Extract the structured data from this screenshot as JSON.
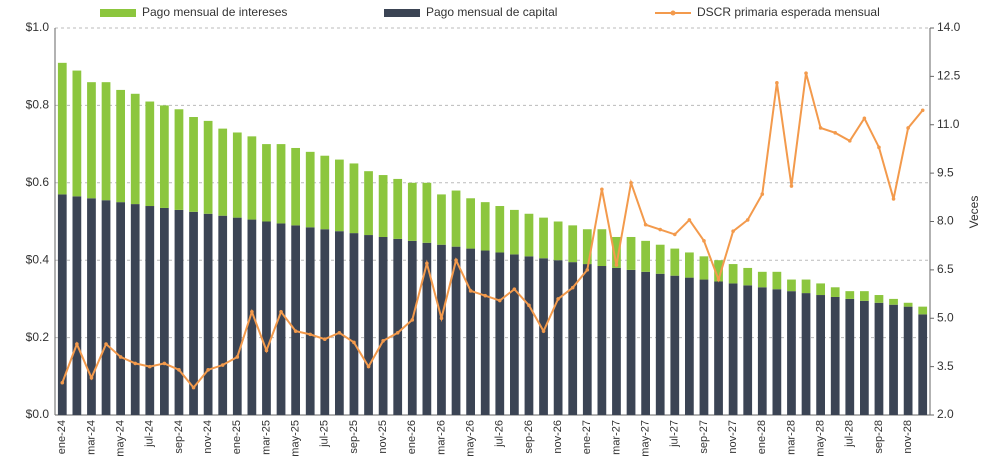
{
  "chart_data": {
    "type": "bar",
    "y2_label": "Veces",
    "categories": [
      "ene-24",
      null,
      "mar-24",
      null,
      "may-24",
      null,
      "jul-24",
      null,
      "sep-24",
      null,
      "nov-24",
      null,
      "ene-25",
      null,
      "mar-25",
      null,
      "may-25",
      null,
      "jul-25",
      null,
      "sep-25",
      null,
      "nov-25",
      null,
      "ene-26",
      null,
      "mar-26",
      null,
      "may-26",
      null,
      "jul-26",
      null,
      "sep-26",
      null,
      "nov-26",
      null,
      "ene-27",
      null,
      "mar-27",
      null,
      "may-27",
      null,
      "jul-27",
      null,
      "sep-27",
      null,
      "nov-27",
      null,
      "ene-28",
      null,
      "mar-28",
      null,
      "may-28",
      null,
      "jul-28",
      null,
      "sep-28",
      null,
      "nov-28",
      null
    ],
    "series": [
      {
        "name": "Pago mensual de intereses",
        "color": "#8cc63e",
        "stack": 2,
        "values": [
          0.34,
          0.325,
          0.3,
          0.305,
          0.29,
          0.285,
          0.27,
          0.265,
          0.26,
          0.245,
          0.24,
          0.225,
          0.22,
          0.215,
          0.2,
          0.205,
          0.2,
          0.195,
          0.19,
          0.185,
          0.18,
          0.165,
          0.16,
          0.155,
          0.15,
          0.155,
          0.13,
          0.145,
          0.13,
          0.125,
          0.12,
          0.115,
          0.11,
          0.105,
          0.1,
          0.095,
          0.09,
          0.095,
          0.08,
          0.085,
          0.08,
          0.075,
          0.07,
          0.065,
          0.06,
          0.055,
          0.05,
          0.045,
          0.04,
          0.045,
          0.03,
          0.035,
          0.03,
          0.025,
          0.02,
          0.025,
          0.02,
          0.015,
          0.01,
          0.02
        ]
      },
      {
        "name": "Pago mensual de capital",
        "color": "#3b4454",
        "stack": 1,
        "values": [
          0.57,
          0.565,
          0.56,
          0.555,
          0.55,
          0.545,
          0.54,
          0.535,
          0.53,
          0.525,
          0.52,
          0.515,
          0.51,
          0.505,
          0.5,
          0.495,
          0.49,
          0.485,
          0.48,
          0.475,
          0.47,
          0.465,
          0.46,
          0.455,
          0.45,
          0.445,
          0.44,
          0.435,
          0.43,
          0.425,
          0.42,
          0.415,
          0.41,
          0.405,
          0.4,
          0.395,
          0.39,
          0.385,
          0.38,
          0.375,
          0.37,
          0.365,
          0.36,
          0.355,
          0.35,
          0.345,
          0.34,
          0.335,
          0.33,
          0.325,
          0.32,
          0.315,
          0.31,
          0.305,
          0.3,
          0.295,
          0.29,
          0.285,
          0.28,
          0.26
        ]
      },
      {
        "name": "DSCR primaria esperada mensual",
        "color": "#f39a4c",
        "type": "line",
        "axis": "y2",
        "values": [
          3.0,
          4.2,
          3.15,
          4.2,
          3.8,
          3.6,
          3.5,
          3.6,
          3.4,
          2.85,
          3.4,
          3.55,
          3.8,
          5.2,
          4.0,
          5.2,
          4.6,
          4.5,
          4.35,
          4.55,
          4.25,
          3.5,
          4.3,
          4.55,
          4.95,
          6.7,
          5.0,
          6.8,
          5.85,
          5.7,
          5.55,
          5.9,
          5.4,
          4.6,
          5.6,
          5.95,
          6.5,
          9.0,
          6.65,
          9.2,
          7.9,
          7.75,
          7.6,
          8.05,
          7.4,
          6.2,
          7.7,
          8.05,
          8.85,
          12.3,
          9.1,
          12.6,
          10.9,
          10.75,
          10.5,
          11.2,
          10.3,
          8.7,
          10.9,
          11.45
        ]
      }
    ],
    "ylim": [
      0,
      1
    ],
    "yticks": [
      {
        "value": 0,
        "label": "$0.0"
      },
      {
        "value": 0.2,
        "label": "$0.2"
      },
      {
        "value": 0.4,
        "label": "$0.4"
      },
      {
        "value": 0.6,
        "label": "$0.6"
      },
      {
        "value": 0.8,
        "label": "$0.8"
      },
      {
        "value": 1,
        "label": "$1.0"
      }
    ],
    "y2lim": [
      2,
      14
    ],
    "y2ticks": [
      {
        "value": 2,
        "label": "2.0"
      },
      3.5,
      {
        "value": 5,
        "label": "5.0"
      },
      6.5,
      {
        "value": 8,
        "label": "8.0"
      },
      9.5,
      {
        "value": 11,
        "label": "11.0"
      },
      12.5,
      {
        "value": 14,
        "label": "14.0"
      }
    ],
    "grid": true,
    "legend": "top"
  }
}
